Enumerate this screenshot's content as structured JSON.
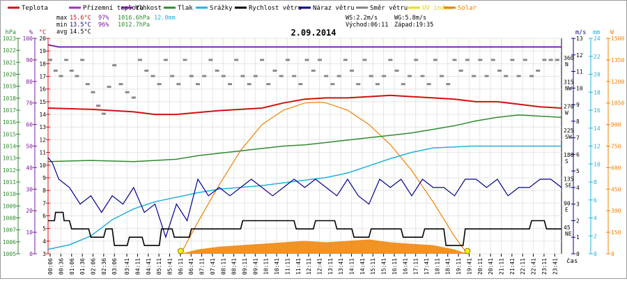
{
  "chart_data": {
    "type": "line",
    "title": "2.09.2014",
    "xlabel": "čas",
    "legend": [
      {
        "label": "Teplota",
        "color": "#d01010"
      },
      {
        "label": "Přízemní teplota",
        "color": "#a030c0"
      },
      {
        "label": "Vlhkost",
        "color": "#7a1aa0"
      },
      {
        "label": "Tlak",
        "color": "#2e8b2e"
      },
      {
        "label": "Srážky",
        "color": "#20b0e0"
      },
      {
        "label": "Rychlost větru",
        "color": "#000000"
      },
      {
        "label": "Náraz větru",
        "color": "#000090"
      },
      {
        "label": "Směr větru",
        "color": "#808080"
      },
      {
        "label": "UV index",
        "color": "#e8e000"
      },
      {
        "label": "Solar",
        "color": "#f08000"
      }
    ],
    "stats": {
      "max": {
        "label": "max",
        "temp": "15.6°C",
        "hum": "97%",
        "press": "1016.6hPa",
        "rain": "12.0mm"
      },
      "min": {
        "label": "min",
        "temp": "13.5°C",
        "hum": "96%",
        "press": "1012.7hPa"
      },
      "avg": {
        "label": "avg",
        "temp": "14.5°C"
      },
      "ws": "WS:2.2m/s",
      "wg": "WG:5.8m/s",
      "sunrise": "Východ:06:11",
      "sunset": "Západ:19:35"
    },
    "axes": {
      "hpa": {
        "title": "hPa",
        "ticks": [
          "1023",
          "1022",
          "1021",
          "1020",
          "1019",
          "1018",
          "1017",
          "1016",
          "1015",
          "1014",
          "1013",
          "1012",
          "1011",
          "1010",
          "1009",
          "1008",
          "1007",
          "1006",
          "1005"
        ]
      },
      "pct": {
        "title": "%",
        "ticks": [
          "100",
          "90",
          "80",
          "70",
          "60",
          "50",
          "40",
          "30",
          "20",
          "10",
          "0"
        ]
      },
      "degc": {
        "title": "°C",
        "ticks": [
          "20",
          "19",
          "18",
          "17",
          "16",
          "15",
          "14",
          "13",
          "12",
          "11",
          "10",
          "9",
          "8",
          "7",
          "6",
          "5",
          "4",
          "3"
        ]
      },
      "dir": {
        "ticks": [
          [
            "360",
            "N"
          ],
          [
            "315",
            "NW"
          ],
          [
            "270",
            "W"
          ],
          [
            "225",
            "SW"
          ],
          [
            "180",
            "S"
          ],
          [
            "135",
            "SE"
          ],
          [
            "90",
            "E"
          ],
          [
            "45",
            "NE"
          ]
        ]
      },
      "ms": {
        "title": "m/s",
        "ticks": [
          "13",
          "12",
          "11",
          "10",
          "9",
          "8",
          "7",
          "6",
          "5",
          "4",
          "3",
          "2",
          "1",
          "0"
        ]
      },
      "mm": {
        "title": "mm",
        "ticks": [
          "24",
          "22",
          "20",
          "18",
          "16",
          "14",
          "12",
          "10",
          "8",
          "6",
          "4",
          "2",
          "0"
        ]
      },
      "w": {
        "title": "W",
        "ticks": [
          "1500",
          "1350",
          "1200",
          "1050",
          "900",
          "750",
          "600",
          "450",
          "300",
          "150",
          "0"
        ]
      }
    },
    "x_ticks": [
      "00:06",
      "00:36",
      "01:06",
      "01:36",
      "02:06",
      "02:36",
      "03:06",
      "03:41",
      "04:11",
      "04:41",
      "05:11",
      "05:41",
      "06:11",
      "06:41",
      "07:11",
      "07:41",
      "08:11",
      "08:41",
      "09:11",
      "09:41",
      "10:11",
      "10:41",
      "11:11",
      "11:41",
      "12:11",
      "12:41",
      "13:11",
      "13:41",
      "14:11",
      "14:41",
      "15:11",
      "15:41",
      "16:11",
      "16:41",
      "17:11",
      "17:41",
      "18:11",
      "18:41",
      "19:11",
      "19:41",
      "20:11",
      "20:41",
      "21:11",
      "21:41",
      "22:11",
      "22:41",
      "23:11",
      "23:41"
    ],
    "x_hours": [
      0.1,
      0.6,
      1.1,
      1.6,
      2.1,
      2.6,
      3.1,
      3.683,
      4.183,
      4.683,
      5.183,
      5.683,
      6.183,
      6.683,
      7.183,
      7.683,
      8.183,
      8.683,
      9.183,
      9.683,
      10.183,
      10.683,
      11.183,
      11.683,
      12.183,
      12.683,
      13.183,
      13.683,
      14.183,
      14.683,
      15.183,
      15.683,
      16.183,
      16.683,
      17.183,
      17.683,
      18.183,
      18.683,
      19.183,
      19.683,
      20.183,
      20.683,
      21.183,
      21.683,
      22.183,
      22.683,
      23.183,
      23.683
    ],
    "series": {
      "temperature_c": {
        "t": [
          0,
          2,
          4,
          5,
          6,
          8,
          10,
          11,
          12,
          13,
          14,
          15,
          16,
          17,
          18,
          19,
          20,
          21,
          22,
          23,
          24
        ],
        "v": [
          14.5,
          14.4,
          14.2,
          14.0,
          14.0,
          14.3,
          14.5,
          14.9,
          15.2,
          15.3,
          15.3,
          15.4,
          15.5,
          15.4,
          15.3,
          15.2,
          15.0,
          15.0,
          14.8,
          14.6,
          14.5
        ]
      },
      "humidity_pct": {
        "t": [
          0,
          0.5,
          1,
          24
        ],
        "v": [
          97,
          96,
          96,
          96
        ]
      },
      "pressure_hpa": {
        "t": [
          0,
          2,
          4,
          5,
          6,
          7,
          8,
          9,
          10,
          11,
          12,
          13,
          14,
          15,
          16,
          17,
          18,
          19,
          20,
          21,
          22,
          23,
          24
        ],
        "v": [
          1012.7,
          1012.8,
          1012.7,
          1012.8,
          1012.9,
          1013.2,
          1013.4,
          1013.6,
          1013.8,
          1014.0,
          1014.1,
          1014.3,
          1014.5,
          1014.7,
          1014.9,
          1015.1,
          1015.4,
          1015.7,
          1016.1,
          1016.4,
          1016.6,
          1016.5,
          1016.4
        ]
      },
      "rain_mm": {
        "t": [
          0,
          1,
          2,
          3,
          4,
          5,
          6,
          7,
          8,
          9,
          10,
          11,
          12,
          13,
          14,
          15,
          16,
          17,
          18,
          19,
          19.8,
          24
        ],
        "v": [
          0.5,
          1.0,
          2.0,
          3.8,
          5.0,
          5.8,
          6.3,
          6.8,
          7.2,
          7.4,
          7.6,
          7.9,
          8.2,
          8.5,
          9.0,
          9.8,
          10.6,
          11.3,
          11.8,
          11.9,
          12.0,
          12.0
        ]
      },
      "wind_speed_ms": {
        "t": [
          0,
          0.3,
          0.35,
          0.7,
          0.75,
          1.0,
          1.1,
          1.9,
          2.0,
          2.6,
          2.7,
          3.0,
          3.1,
          3.7,
          3.8,
          4.4,
          4.5,
          5.2,
          5.3,
          5.8,
          5.9,
          6.6,
          6.7,
          9.0,
          9.1,
          11.5,
          11.6,
          12.4,
          12.5,
          13.4,
          13.5,
          14.2,
          14.3,
          15.0,
          15.1,
          16.5,
          16.6,
          17.5,
          17.6,
          18.5,
          18.6,
          19.4,
          19.5,
          20.8,
          20.9,
          22.5,
          22.6,
          23.2,
          23.3,
          24.0
        ],
        "v": [
          2.0,
          2.0,
          2.5,
          2.5,
          2.0,
          2.0,
          1.5,
          1.5,
          1.0,
          1.0,
          1.5,
          1.5,
          0.5,
          0.5,
          1.0,
          1.0,
          0.5,
          0.5,
          1.5,
          1.5,
          1.0,
          1.0,
          1.5,
          1.5,
          2.0,
          2.0,
          1.5,
          1.5,
          2.0,
          2.0,
          1.5,
          1.5,
          1.0,
          1.0,
          1.5,
          1.5,
          1.0,
          1.0,
          1.5,
          1.5,
          0.5,
          0.5,
          1.5,
          1.5,
          1.5,
          1.5,
          2.0,
          2.0,
          1.5,
          1.5
        ]
      },
      "wind_gust_ms": {
        "t": [
          0,
          0.2,
          0.5,
          1.0,
          1.5,
          2.0,
          2.5,
          3.0,
          3.5,
          4.0,
          4.5,
          5.0,
          5.5,
          6.0,
          6.5,
          7.0,
          7.5,
          8.0,
          8.5,
          9.0,
          9.5,
          10.0,
          10.5,
          11.0,
          11.5,
          12.0,
          12.5,
          13.0,
          13.5,
          14.0,
          14.5,
          15.0,
          15.5,
          16.0,
          16.5,
          17.0,
          17.5,
          18.0,
          18.5,
          19.0,
          19.5,
          20.0,
          20.5,
          21.0,
          21.5,
          22.0,
          22.5,
          23.0,
          23.5,
          24.0
        ],
        "v": [
          5.8,
          5.5,
          4.5,
          4.0,
          3.0,
          3.5,
          2.5,
          3.5,
          3.0,
          4.0,
          2.5,
          3.0,
          1.0,
          3.0,
          2.0,
          4.5,
          3.5,
          4.0,
          3.5,
          4.0,
          4.5,
          4.0,
          3.5,
          4.0,
          4.5,
          4.0,
          4.5,
          4.0,
          3.5,
          4.5,
          3.5,
          3.0,
          4.5,
          4.0,
          4.5,
          3.5,
          4.5,
          4.0,
          4.0,
          3.5,
          4.5,
          4.5,
          4.0,
          4.5,
          3.5,
          4.0,
          4.0,
          4.5,
          4.5,
          4.0
        ]
      },
      "solar_wm2": {
        "t": [
          6.2,
          7,
          8,
          9,
          10,
          11,
          12,
          12.7,
          13,
          14,
          15,
          16,
          17,
          18,
          19,
          19.6
        ],
        "v": [
          0,
          220,
          480,
          720,
          900,
          1000,
          1050,
          1055,
          1050,
          1000,
          900,
          760,
          580,
          360,
          120,
          0
        ]
      },
      "solar_fill_wm2": {
        "t": [
          0,
          6.2,
          7,
          8,
          9,
          10,
          11,
          12,
          13,
          14,
          15,
          16,
          17,
          18,
          19,
          19.6,
          24
        ],
        "v": [
          0,
          0,
          30,
          50,
          60,
          70,
          80,
          90,
          80,
          90,
          100,
          80,
          70,
          60,
          30,
          0,
          0
        ]
      },
      "wind_dir_deg": {
        "t": [
          0.1,
          0.35,
          0.6,
          0.85,
          1.1,
          1.35,
          1.6,
          1.85,
          2.1,
          2.35,
          2.6,
          2.85,
          3.1,
          3.4,
          3.7,
          4.0,
          4.3,
          4.6,
          4.9,
          5.2,
          5.5,
          5.8,
          6.1,
          6.4,
          6.7,
          7.0,
          7.3,
          7.6,
          7.9,
          8.2,
          8.5,
          8.8,
          9.1,
          9.4,
          9.7,
          10.0,
          10.3,
          10.6,
          10.9,
          11.2,
          11.5,
          11.8,
          12.1,
          12.4,
          12.7,
          13.0,
          13.3,
          13.6,
          13.9,
          14.2,
          14.5,
          14.8,
          15.1,
          15.4,
          15.7,
          16.0,
          16.3,
          16.6,
          16.9,
          17.2,
          17.5,
          17.8,
          18.1,
          18.4,
          18.7,
          19.0,
          19.3,
          19.6,
          19.9,
          20.2,
          20.5,
          20.8,
          21.1,
          21.4,
          21.7,
          22.0,
          22.3,
          22.6,
          22.9,
          23.2,
          23.5,
          23.8
        ],
        "v": [
          360,
          340,
          330,
          360,
          340,
          330,
          360,
          315,
          300,
          275,
          260,
          310,
          350,
          315,
          300,
          290,
          360,
          340,
          330,
          315,
          360,
          330,
          315,
          360,
          330,
          315,
          330,
          360,
          340,
          330,
          315,
          360,
          330,
          315,
          330,
          360,
          315,
          340,
          330,
          360,
          330,
          315,
          360,
          340,
          360,
          330,
          315,
          330,
          360,
          340,
          315,
          360,
          330,
          315,
          330,
          360,
          340,
          315,
          330,
          360,
          330,
          315,
          360,
          330,
          315,
          360,
          340,
          360,
          330,
          360,
          330,
          360,
          340,
          330,
          360,
          330,
          360,
          330,
          340,
          360,
          360,
          360
        ]
      },
      "uv_points": {
        "t": [
          6.2,
          19.6
        ],
        "v": [
          0,
          0
        ]
      }
    }
  }
}
